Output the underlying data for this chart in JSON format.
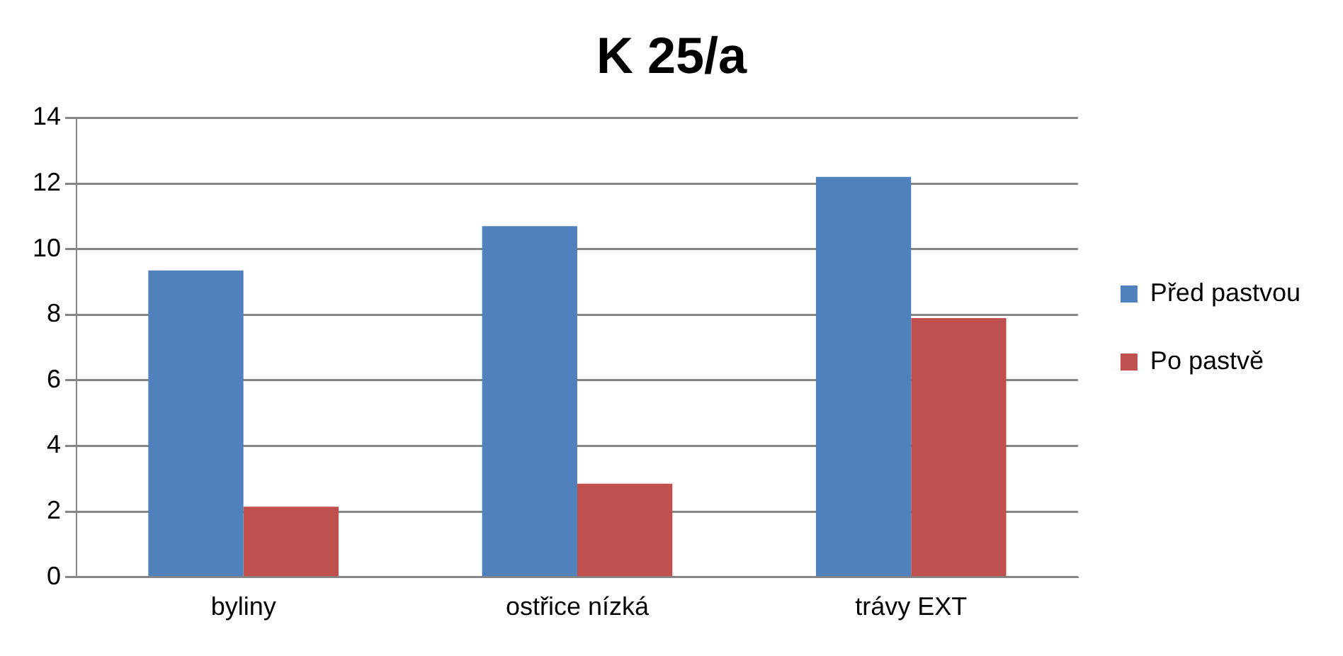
{
  "chart_data": {
    "type": "bar",
    "title": "K 25/a",
    "categories": [
      "byliny",
      "ostřice nízká",
      "trávy EXT"
    ],
    "series": [
      {
        "name": "Před pastvou",
        "color": "#4f81bd",
        "values": [
          9.35,
          10.7,
          12.2
        ]
      },
      {
        "name": "Po pastvě",
        "color": "#c0504d",
        "values": [
          2.15,
          2.85,
          7.9
        ]
      }
    ],
    "ylim": [
      0,
      14
    ],
    "yticks": [
      0,
      2,
      4,
      6,
      8,
      10,
      12,
      14
    ],
    "grid": "y",
    "legend": "right"
  }
}
